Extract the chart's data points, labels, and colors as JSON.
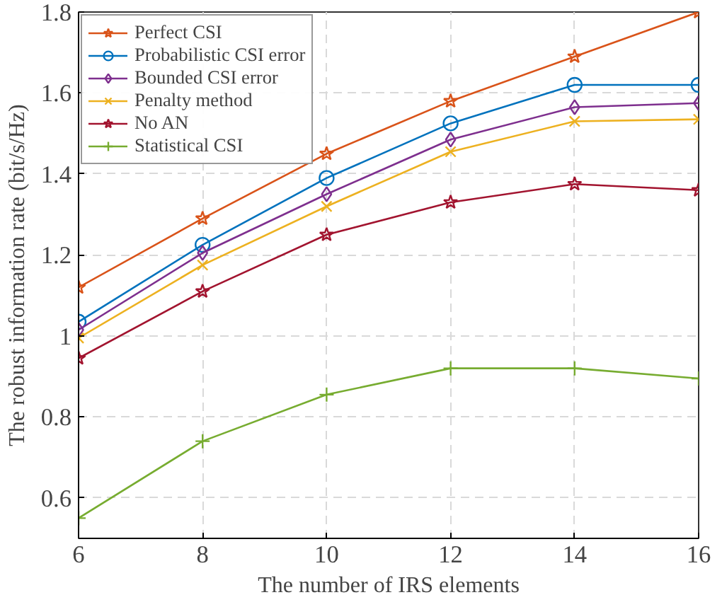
{
  "chart_data": {
    "type": "line",
    "xlabel": "The number of IRS elements",
    "ylabel": "The robust information rate (bit/s/Hz)",
    "x": [
      6,
      8,
      10,
      12,
      14,
      16
    ],
    "series": [
      {
        "name": "Perfect CSI",
        "color": "#d95319",
        "marker": "star",
        "values": [
          1.12,
          1.29,
          1.45,
          1.58,
          1.69,
          1.8
        ]
      },
      {
        "name": "Probabilistic CSI error",
        "color": "#0072bd",
        "marker": "circle",
        "values": [
          1.035,
          1.225,
          1.39,
          1.525,
          1.62,
          1.62
        ]
      },
      {
        "name": "Bounded CSI error",
        "color": "#7e2f8e",
        "marker": "diamond",
        "values": [
          1.015,
          1.205,
          1.35,
          1.485,
          1.565,
          1.575
        ]
      },
      {
        "name": "Penalty method",
        "color": "#edb120",
        "marker": "x",
        "values": [
          0.995,
          1.175,
          1.32,
          1.455,
          1.53,
          1.535
        ]
      },
      {
        "name": "No AN",
        "color": "#a2142f",
        "marker": "star",
        "values": [
          0.945,
          1.11,
          1.25,
          1.33,
          1.375,
          1.36
        ]
      },
      {
        "name": "Statistical CSI",
        "color": "#77ac30",
        "marker": "cross",
        "values": [
          0.55,
          0.74,
          0.855,
          0.92,
          0.92,
          0.895
        ]
      }
    ],
    "xlim": [
      6,
      16
    ],
    "xticks": [
      6,
      8,
      10,
      12,
      14,
      16
    ],
    "ylim": [
      0.5,
      1.8
    ],
    "yticks": [
      0.6,
      0.8,
      1,
      1.2,
      1.4,
      1.6,
      1.8
    ],
    "grid": true,
    "legend": "top left",
    "line_style": "solid"
  }
}
